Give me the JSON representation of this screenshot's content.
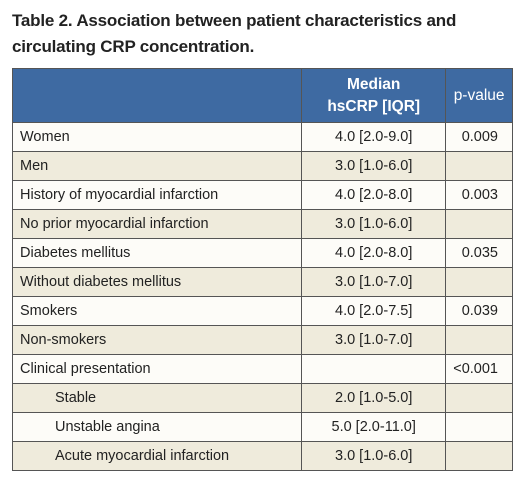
{
  "title": "Table 2. Association between patient characteristics and circulating CRP concentration.",
  "table": {
    "header": {
      "median": "Median hsCRP [IQR]",
      "p": "p-value"
    },
    "rows": [
      {
        "characteristic": "Women",
        "median": "4.0 [2.0-9.0]",
        "p": "0.009"
      },
      {
        "characteristic": "Men",
        "median": "3.0 [1.0-6.0]"
      },
      {
        "characteristic": "History of myocardial infarction",
        "median": "4.0 [2.0-8.0]",
        "p": "0.003"
      },
      {
        "characteristic": "No prior myocardial infarction",
        "median": "3.0 [1.0-6.0]"
      },
      {
        "characteristic": "Diabetes mellitus",
        "median": "4.0 [2.0-8.0]",
        "p": "0.035"
      },
      {
        "characteristic": "Without diabetes mellitus",
        "median": "3.0 [1.0-7.0]"
      },
      {
        "characteristic": "Smokers",
        "median": "4.0 [2.0-7.5]",
        "p": "0.039"
      },
      {
        "characteristic": "Non-smokers",
        "median": "3.0 [1.0-7.0]"
      },
      {
        "characteristic": "Clinical presentation",
        "p": "<0.001"
      },
      {
        "characteristic": "Stable",
        "median": "2.0 [1.0-5.0]"
      },
      {
        "characteristic": "Unstable angina",
        "median": "5.0 [2.0-11.0]"
      },
      {
        "characteristic": "Acute myocardial infarction",
        "median": "3.0 [1.0-6.0]"
      }
    ]
  }
}
